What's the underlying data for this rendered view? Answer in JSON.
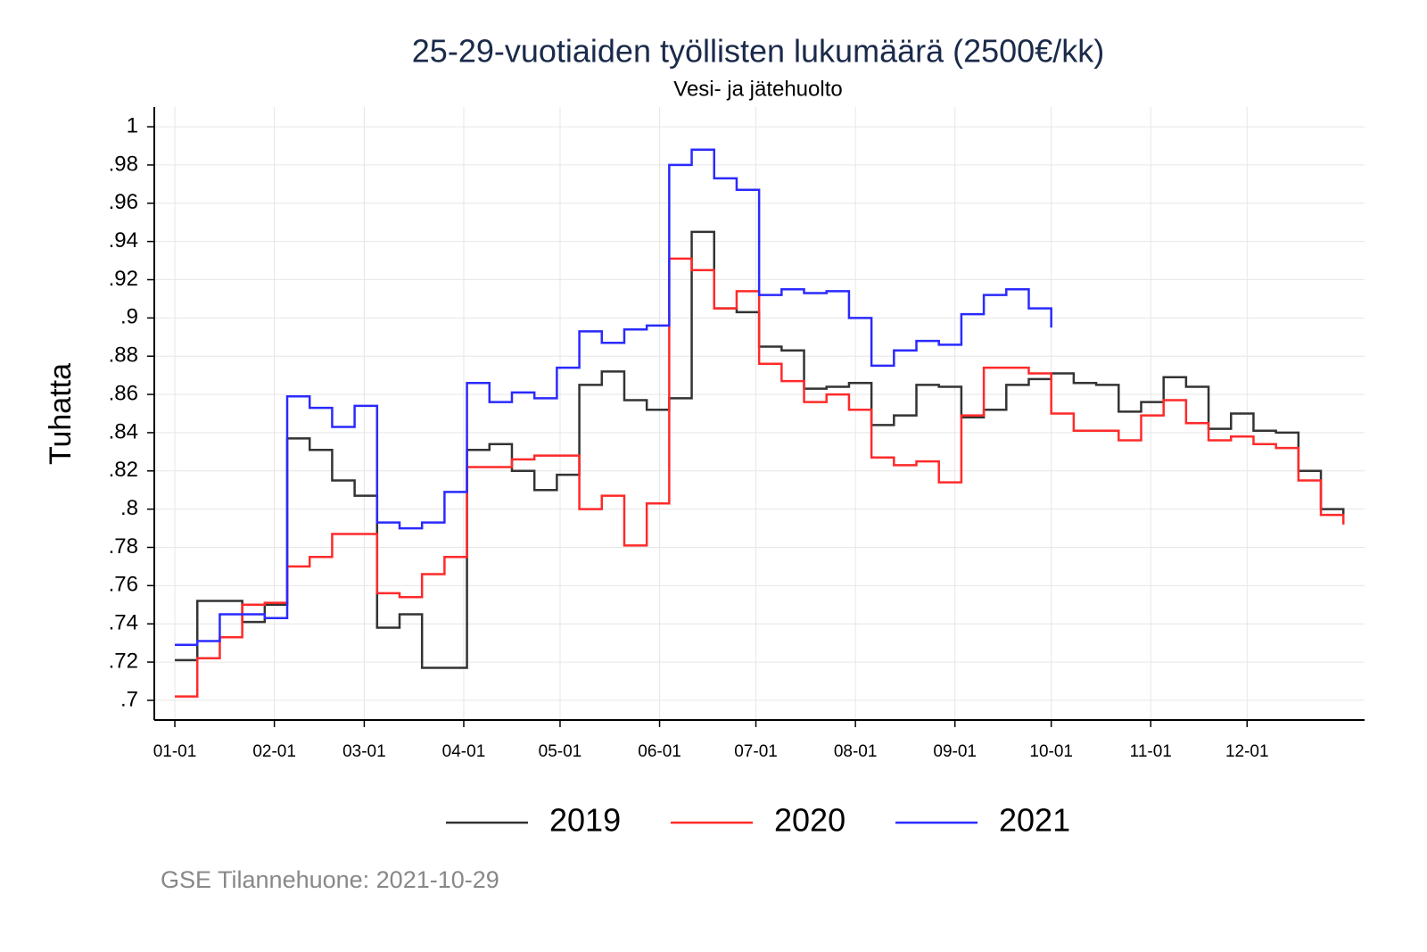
{
  "chart_data": {
    "type": "line",
    "line_shape": "step",
    "title": "25-29-vuotiaiden työllisten lukumäärä (2500€/kk)",
    "subtitle": "Vesi- ja jätehuolto",
    "y_label": "Tuhatta",
    "caption": "GSE Tilannehuone: 2021-10-29",
    "x": [
      1,
      8,
      15,
      22,
      29,
      36,
      43,
      50,
      57,
      64,
      71,
      78,
      85,
      92,
      99,
      106,
      113,
      120,
      127,
      134,
      141,
      148,
      155,
      162,
      169,
      176,
      183,
      190,
      197,
      204,
      211,
      218,
      225,
      232,
      239,
      246,
      253,
      260,
      267,
      274,
      281,
      288,
      295,
      302,
      309,
      316,
      323,
      330,
      337,
      344,
      351,
      358,
      365
    ],
    "series": [
      {
        "name": "2019",
        "color": "#333333",
        "values": [
          0.721,
          0.752,
          0.752,
          0.741,
          0.75,
          0.837,
          0.831,
          0.815,
          0.807,
          0.738,
          0.745,
          0.717,
          0.717,
          0.831,
          0.834,
          0.82,
          0.81,
          0.818,
          0.865,
          0.872,
          0.857,
          0.852,
          0.858,
          0.945,
          0.905,
          0.903,
          0.885,
          0.883,
          0.863,
          0.864,
          0.866,
          0.844,
          0.849,
          0.865,
          0.864,
          0.848,
          0.852,
          0.865,
          0.868,
          0.871,
          0.866,
          0.865,
          0.851,
          0.856,
          0.869,
          0.864,
          0.842,
          0.85,
          0.841,
          0.84,
          0.82,
          0.8,
          0.792
        ]
      },
      {
        "name": "2020",
        "color": "#ff2a2a",
        "values": [
          0.702,
          0.722,
          0.733,
          0.75,
          0.751,
          0.77,
          0.775,
          0.787,
          0.787,
          0.756,
          0.754,
          0.766,
          0.775,
          0.822,
          0.822,
          0.826,
          0.828,
          0.828,
          0.8,
          0.807,
          0.781,
          0.803,
          0.931,
          0.925,
          0.905,
          0.914,
          0.876,
          0.867,
          0.856,
          0.86,
          0.852,
          0.827,
          0.823,
          0.825,
          0.814,
          0.849,
          0.874,
          0.874,
          0.871,
          0.85,
          0.841,
          0.841,
          0.836,
          0.849,
          0.857,
          0.845,
          0.836,
          0.838,
          0.834,
          0.832,
          0.815,
          0.797,
          0.792
        ]
      },
      {
        "name": "2021",
        "color": "#2a2aff",
        "values": [
          0.729,
          0.731,
          0.745,
          0.745,
          0.743,
          0.859,
          0.853,
          0.843,
          0.854,
          0.793,
          0.79,
          0.793,
          0.809,
          0.866,
          0.856,
          0.861,
          0.858,
          0.874,
          0.893,
          0.887,
          0.894,
          0.896,
          0.98,
          0.988,
          0.973,
          0.967,
          0.912,
          0.915,
          0.913,
          0.914,
          0.9,
          0.875,
          0.883,
          0.888,
          0.886,
          0.902,
          0.912,
          0.915,
          0.905,
          0.895,
          null,
          null,
          null,
          null,
          null,
          null,
          null,
          null,
          null,
          null,
          null,
          null,
          null
        ]
      }
    ],
    "xlim": [
      -5.4,
      371.6
    ],
    "xticks": [
      {
        "value": 1,
        "label": "01-01"
      },
      {
        "value": 32,
        "label": "02-01"
      },
      {
        "value": 60,
        "label": "03-01"
      },
      {
        "value": 91,
        "label": "04-01"
      },
      {
        "value": 121,
        "label": "05-01"
      },
      {
        "value": 152,
        "label": "06-01"
      },
      {
        "value": 182,
        "label": "07-01"
      },
      {
        "value": 213,
        "label": "08-01"
      },
      {
        "value": 244,
        "label": "09-01"
      },
      {
        "value": 274,
        "label": "10-01"
      },
      {
        "value": 305,
        "label": "11-01"
      },
      {
        "value": 335,
        "label": "12-01"
      }
    ],
    "ylim": [
      0.6897,
      1.0103
    ],
    "yticks": [
      {
        "value": 0.7,
        "label": ".7"
      },
      {
        "value": 0.72,
        "label": ".72"
      },
      {
        "value": 0.74,
        "label": ".74"
      },
      {
        "value": 0.76,
        "label": ".76"
      },
      {
        "value": 0.78,
        "label": ".78"
      },
      {
        "value": 0.8,
        "label": ".8"
      },
      {
        "value": 0.82,
        "label": ".82"
      },
      {
        "value": 0.84,
        "label": ".84"
      },
      {
        "value": 0.86,
        "label": ".86"
      },
      {
        "value": 0.88,
        "label": ".88"
      },
      {
        "value": 0.9,
        "label": ".9"
      },
      {
        "value": 0.92,
        "label": ".92"
      },
      {
        "value": 0.94,
        "label": ".94"
      },
      {
        "value": 0.96,
        "label": ".96"
      },
      {
        "value": 0.98,
        "label": ".98"
      },
      1
    ],
    "grid": true,
    "legend": "bottom"
  }
}
